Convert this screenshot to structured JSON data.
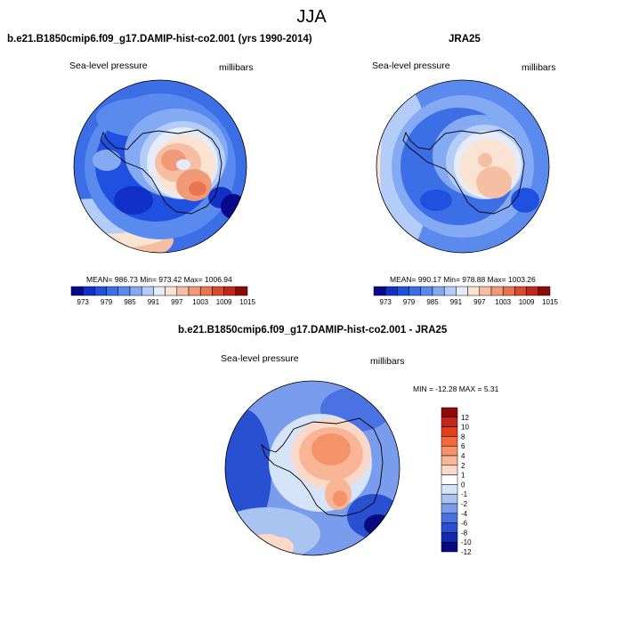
{
  "figure": {
    "title": "JJA"
  },
  "panels": {
    "model": {
      "title": "b.e21.B1850cmip6.f09_g17.DAMIP-hist-co2.001 (yrs 1990-2014)",
      "left_label": "Sea-level pressure",
      "right_label": "millibars",
      "stats": "MEAN= 986.73  Min= 973.42  Max= 1006.94",
      "colorbar_ticks": [
        "973",
        "979",
        "985",
        "991",
        "997",
        "1003",
        "1009",
        "1015"
      ]
    },
    "obs": {
      "title": "JRA25",
      "left_label": "Sea-level pressure",
      "right_label": "millibars",
      "stats": "MEAN= 990.17  Min= 978.88  Max= 1003.26",
      "colorbar_ticks": [
        "973",
        "979",
        "985",
        "991",
        "997",
        "1003",
        "1009",
        "1015"
      ]
    },
    "diff": {
      "title": "b.e21.B1850cmip6.f09_g17.DAMIP-hist-co2.001 - JRA25",
      "left_label": "Sea-level pressure",
      "right_label": "millibars",
      "stats": "MIN = -12.28 MAX =   5.31",
      "colorbar_ticks": [
        "12",
        "10",
        "8",
        "6",
        "4",
        "2",
        "1",
        "0",
        "-1",
        "-2",
        "-4",
        "-6",
        "-8",
        "-10",
        "-12"
      ]
    }
  },
  "colors": {
    "abs_scale": [
      "#08088a",
      "#1030c8",
      "#2050e0",
      "#3c6ee6",
      "#5a8aee",
      "#84aaf4",
      "#b4cdf8",
      "#e4ecfa",
      "#fbe3d4",
      "#f6bea3",
      "#f09a78",
      "#ea7352",
      "#dc4a2e",
      "#c0281a",
      "#8c0a08"
    ],
    "diff_scale": [
      "#8c0a08",
      "#c0281a",
      "#e0401e",
      "#f06a3a",
      "#f4936a",
      "#f8b696",
      "#fbd9c8",
      "#ffffff",
      "#d6e4fa",
      "#aac4f2",
      "#7a9cec",
      "#4a72e2",
      "#2a50d2",
      "#1428b0",
      "#0a0a80"
    ],
    "coast": "#000000"
  }
}
